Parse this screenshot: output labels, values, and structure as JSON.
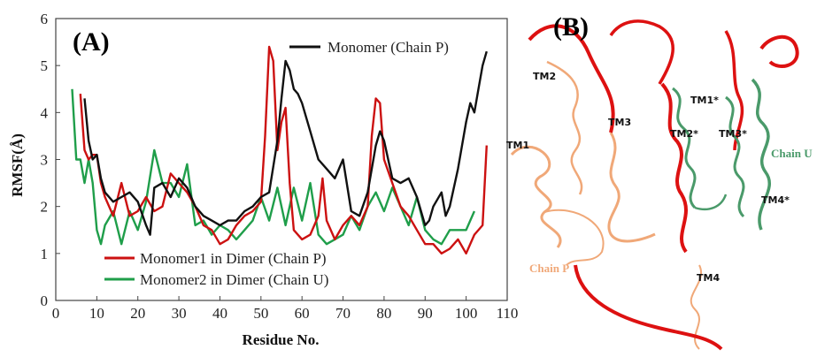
{
  "chart_data": [
    {
      "type": "line",
      "panel_label": "(A)",
      "xlabel": "Residue No.",
      "ylabel": "RMSF(Å)",
      "xlim": [
        0,
        110
      ],
      "ylim": [
        0,
        6
      ],
      "xticks": [
        "0",
        "10",
        "20",
        "30",
        "40",
        "50",
        "60",
        "70",
        "80",
        "90",
        "100",
        "110"
      ],
      "yticks": [
        "0",
        "1",
        "2",
        "3",
        "4",
        "5",
        "6"
      ],
      "grid": false,
      "legend_placement": "top-right and bottom-left",
      "series": [
        {
          "name": "Monomer (Chain P)",
          "color": "#111111",
          "x": [
            7,
            8,
            9,
            10,
            11,
            12,
            14,
            16,
            18,
            20,
            22,
            23,
            24,
            26,
            28,
            30,
            32,
            34,
            36,
            38,
            40,
            42,
            44,
            46,
            48,
            50,
            52,
            54,
            55,
            56,
            57,
            58,
            59,
            60,
            62,
            64,
            66,
            68,
            70,
            72,
            74,
            76,
            78,
            79,
            80,
            82,
            84,
            86,
            88,
            90,
            91,
            92,
            94,
            95,
            96,
            98,
            100,
            101,
            102,
            103,
            104,
            105
          ],
          "y": [
            4.3,
            3.4,
            3.0,
            3.1,
            2.6,
            2.3,
            2.1,
            2.2,
            2.3,
            2.1,
            1.6,
            1.4,
            2.4,
            2.5,
            2.2,
            2.6,
            2.4,
            2.0,
            1.8,
            1.7,
            1.6,
            1.7,
            1.7,
            1.9,
            2.0,
            2.2,
            2.3,
            3.4,
            4.3,
            5.1,
            4.9,
            4.5,
            4.4,
            4.2,
            3.6,
            3.0,
            2.8,
            2.6,
            3.0,
            1.9,
            1.8,
            2.3,
            3.3,
            3.6,
            3.4,
            2.6,
            2.5,
            2.6,
            2.2,
            1.6,
            1.7,
            2.0,
            2.3,
            1.8,
            2.0,
            2.8,
            3.8,
            4.2,
            4.0,
            4.5,
            5.0,
            5.3
          ]
        },
        {
          "name": "Monomer1 in Dimer (Chain P)",
          "color": "#cc1111",
          "x": [
            6,
            7,
            8,
            9,
            10,
            11,
            12,
            14,
            16,
            18,
            20,
            22,
            24,
            26,
            28,
            30,
            32,
            34,
            36,
            38,
            40,
            42,
            44,
            46,
            48,
            50,
            51,
            52,
            53,
            54,
            55,
            56,
            57,
            58,
            60,
            62,
            64,
            65,
            66,
            68,
            70,
            72,
            74,
            76,
            77,
            78,
            79,
            80,
            82,
            84,
            86,
            88,
            90,
            92,
            94,
            96,
            98,
            100,
            102,
            104,
            105
          ],
          "y": [
            4.4,
            3.2,
            3.0,
            3.1,
            3.1,
            2.5,
            2.2,
            1.8,
            2.5,
            1.8,
            1.9,
            2.2,
            1.9,
            2.0,
            2.7,
            2.5,
            2.3,
            2.0,
            1.6,
            1.5,
            1.2,
            1.3,
            1.6,
            1.8,
            1.9,
            2.1,
            3.5,
            5.4,
            5.1,
            3.2,
            3.8,
            4.1,
            2.5,
            1.5,
            1.3,
            1.4,
            1.8,
            2.6,
            1.7,
            1.3,
            1.6,
            1.8,
            1.6,
            2.0,
            3.5,
            4.3,
            4.2,
            3.0,
            2.5,
            2.0,
            1.8,
            1.5,
            1.2,
            1.2,
            1.0,
            1.1,
            1.3,
            1.0,
            1.4,
            1.6,
            3.3
          ]
        },
        {
          "name": "Monomer2 in Dimer (Chain U)",
          "color": "#1f9e4a",
          "x": [
            4,
            5,
            6,
            7,
            8,
            9,
            10,
            11,
            12,
            14,
            16,
            18,
            20,
            22,
            24,
            26,
            28,
            30,
            32,
            34,
            36,
            38,
            40,
            42,
            44,
            46,
            48,
            50,
            52,
            54,
            56,
            58,
            60,
            62,
            64,
            66,
            68,
            70,
            72,
            74,
            76,
            78,
            80,
            82,
            84,
            86,
            88,
            90,
            92,
            94,
            96,
            98,
            100,
            102
          ],
          "y": [
            4.5,
            3.0,
            3.0,
            2.5,
            3.0,
            2.5,
            1.5,
            1.2,
            1.6,
            1.9,
            1.2,
            1.9,
            1.5,
            2.1,
            3.2,
            2.5,
            2.5,
            2.2,
            2.9,
            1.6,
            1.7,
            1.4,
            1.6,
            1.5,
            1.3,
            1.5,
            1.7,
            2.2,
            1.7,
            2.4,
            1.6,
            2.4,
            1.7,
            2.5,
            1.4,
            1.2,
            1.3,
            1.4,
            1.8,
            1.5,
            2.0,
            2.3,
            1.9,
            2.4,
            2.0,
            1.6,
            2.2,
            1.5,
            1.3,
            1.2,
            1.5,
            1.5,
            1.5,
            1.9
          ]
        }
      ]
    }
  ],
  "structure_panel": {
    "panel_label": "(B)",
    "helix_labels": [
      "TM1",
      "TM2",
      "TM3",
      "TM4",
      "TM1*",
      "TM2*",
      "TM3*",
      "TM4*"
    ],
    "chain_labels": [
      "Chain P",
      "Chain U"
    ],
    "colors": {
      "chain_p_light": "#f0a878",
      "chain_p_red": "#dd1111",
      "chain_u": "#4a9a6a"
    }
  }
}
